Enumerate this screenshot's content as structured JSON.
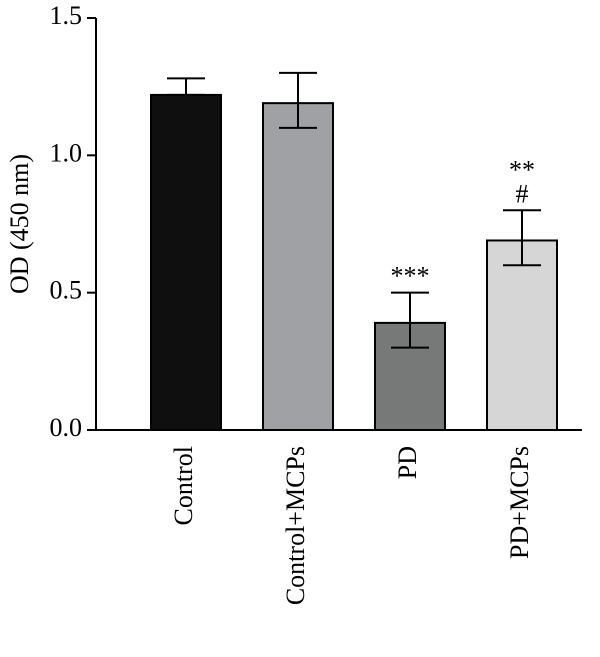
{
  "chart_data": {
    "type": "bar",
    "title": "",
    "xlabel": "",
    "ylabel": "OD (450 nm)",
    "ylim": [
      0,
      1.5
    ],
    "yticks": [
      0,
      0.5,
      1.0,
      1.5
    ],
    "ytick_labels": [
      "0.0",
      "0.5",
      "1.0",
      "1.5"
    ],
    "categories": [
      "Control",
      "Control+MCPs",
      "PD",
      "PD+MCPs"
    ],
    "values": [
      1.22,
      1.19,
      0.39,
      0.69
    ],
    "error_upper": [
      1.28,
      1.3,
      0.5,
      0.8
    ],
    "error_lower": [
      1.22,
      1.1,
      0.3,
      0.6
    ],
    "colors": [
      "#0f0f0f",
      "#a0a1a5",
      "#777978",
      "#d6d6d6"
    ],
    "significance": [
      [],
      [],
      [
        "***"
      ],
      [
        "**",
        "#"
      ]
    ],
    "grid": false,
    "legend": false
  }
}
